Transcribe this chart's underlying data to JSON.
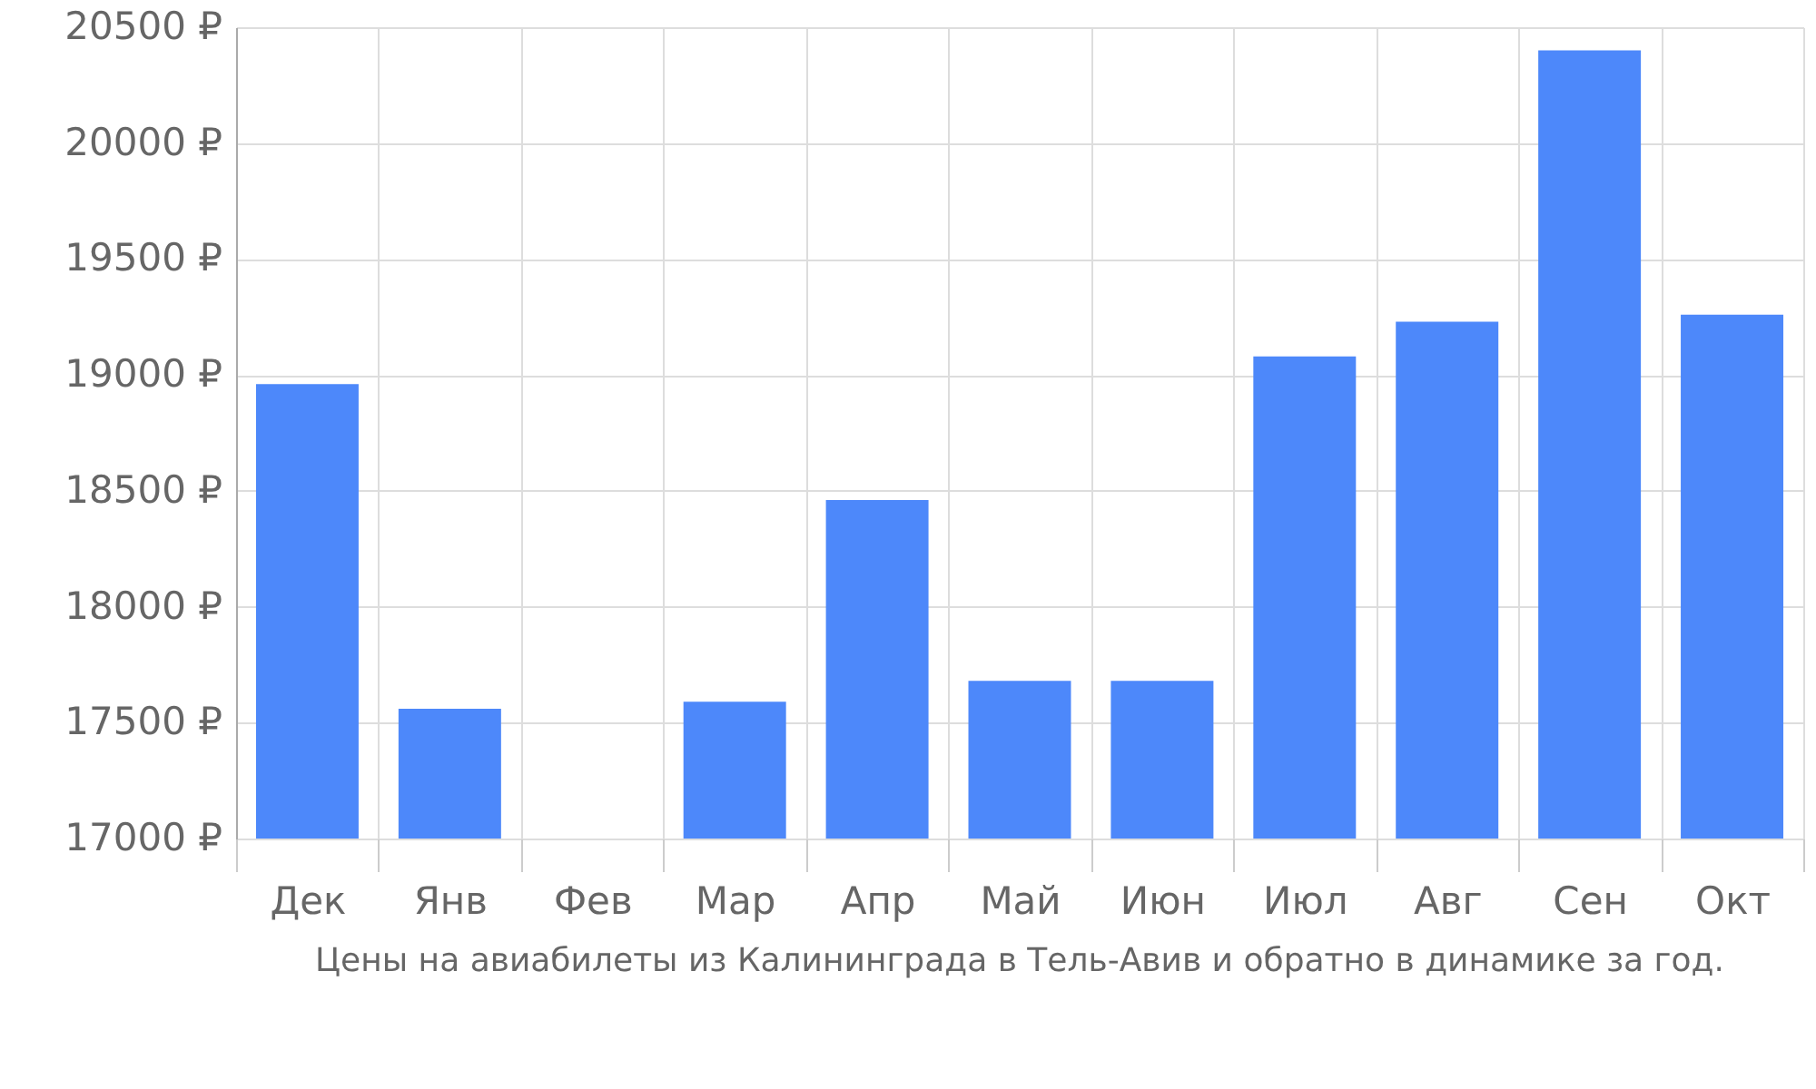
{
  "chart_data": {
    "type": "bar",
    "title": "Цены на авиабилеты из Калининграда в Тель-Авив и обратно в динамике за год.",
    "categories": [
      "Дек",
      "Янв",
      "Фев",
      "Мар",
      "Апр",
      "Май",
      "Июн",
      "Июл",
      "Авг",
      "Сен",
      "Окт"
    ],
    "values": [
      18960,
      17560,
      null,
      17590,
      18460,
      17680,
      17680,
      19080,
      19230,
      20400,
      19260
    ],
    "color": "#4d88fa",
    "ylim": [
      17000,
      20500
    ],
    "yticks": [
      {
        "value": 17000,
        "label": "17000 ₽"
      },
      {
        "value": 17500,
        "label": "17500 ₽"
      },
      {
        "value": 18000,
        "label": "18000 ₽"
      },
      {
        "value": 18500,
        "label": "18500 ₽"
      },
      {
        "value": 19000,
        "label": "19000 ₽"
      },
      {
        "value": 19500,
        "label": "19500 ₽"
      },
      {
        "value": 20000,
        "label": "20000 ₽"
      },
      {
        "value": 20500,
        "label": "20500 ₽"
      }
    ],
    "grid": true
  }
}
